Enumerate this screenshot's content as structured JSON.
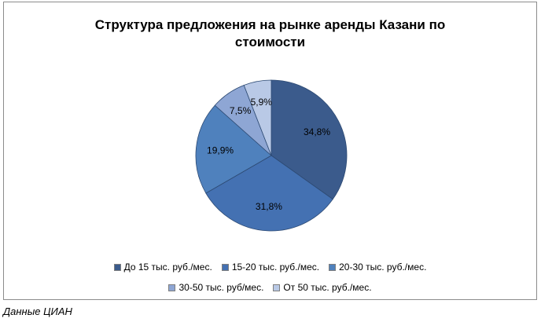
{
  "chart_data": {
    "type": "pie",
    "title_line1": "Структура предложения на рынке аренды Казани по",
    "title_line2": "стоимости",
    "slices": [
      {
        "label": "До 15 тыс. руб./мес.",
        "value": 34.8,
        "value_label": "34,8%",
        "color": "#3b5b8c"
      },
      {
        "label": "15-20 тыс. руб./мес.",
        "value": 31.8,
        "value_label": "31,8%",
        "color": "#4471b2"
      },
      {
        "label": "20-30 тыс. руб./мес.",
        "value": 19.9,
        "value_label": "19,9%",
        "color": "#4f81bd"
      },
      {
        "label": "30-50 тыс. руб/мес.",
        "value": 7.5,
        "value_label": "7,5%",
        "color": "#8ea6d4"
      },
      {
        "label": "От 50 тыс. руб./мес.",
        "value": 5.9,
        "value_label": "5,9%",
        "color": "#b9c9e6"
      }
    ],
    "legend_placement": "bottom"
  },
  "source_note": "Данные ЦИАН"
}
